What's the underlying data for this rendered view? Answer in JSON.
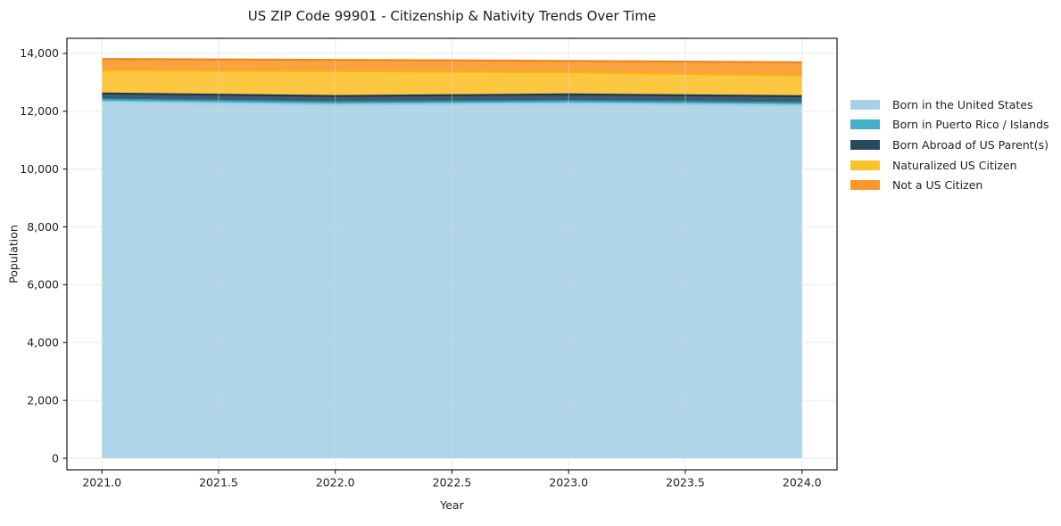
{
  "chart_data": {
    "type": "area",
    "stacked": true,
    "title": "US ZIP Code 99901 - Citizenship & Nativity Trends Over Time",
    "xlabel": "Year",
    "ylabel": "Population",
    "x": [
      2021,
      2022,
      2023,
      2024
    ],
    "series": [
      {
        "name": "Born in the United States",
        "values": [
          12340,
          12230,
          12280,
          12210
        ],
        "color": "#a6d2e6",
        "edge_color": "#98c9e0"
      },
      {
        "name": "Born in Puerto Rico / Islands",
        "values": [
          65,
          80,
          70,
          75
        ],
        "color": "#43b1c5",
        "edge_color": "#2da0b7"
      },
      {
        "name": "Born Abroad of US Parent(s)",
        "values": [
          210,
          215,
          230,
          235
        ],
        "color": "#29495f",
        "edge_color": "#1a3850"
      },
      {
        "name": "Naturalized US Citizen",
        "values": [
          800,
          860,
          770,
          710
        ],
        "color": "#fcc12c",
        "edge_color": "#fab30f"
      },
      {
        "name": "Not a US Citizen",
        "values": [
          390,
          390,
          390,
          460
        ],
        "color": "#f8982a",
        "edge_color": "#ee851a"
      }
    ],
    "totals": [
      13805,
      13775,
      13740,
      13690
    ],
    "xlim": [
      2020.85,
      2024.15
    ],
    "ylim": [
      -400,
      14520
    ],
    "x_ticks": [
      2021.0,
      2021.5,
      2022.0,
      2022.5,
      2023.0,
      2023.5,
      2024.0
    ],
    "x_tick_labels": [
      "2021.0",
      "2021.5",
      "2022.0",
      "2022.5",
      "2023.0",
      "2023.5",
      "2024.0"
    ],
    "y_ticks": [
      0,
      2000,
      4000,
      6000,
      8000,
      10000,
      12000,
      14000
    ],
    "y_tick_labels": [
      "0",
      "2,000",
      "4,000",
      "6,000",
      "8,000",
      "10,000",
      "12,000",
      "14,000"
    ],
    "grid": true,
    "legend_position": "right-outside-top",
    "colors": {
      "spine": "#1a1a1a",
      "grid": "#d8d8d8",
      "text": "#1f1f1f",
      "background": "#ffffff"
    }
  }
}
